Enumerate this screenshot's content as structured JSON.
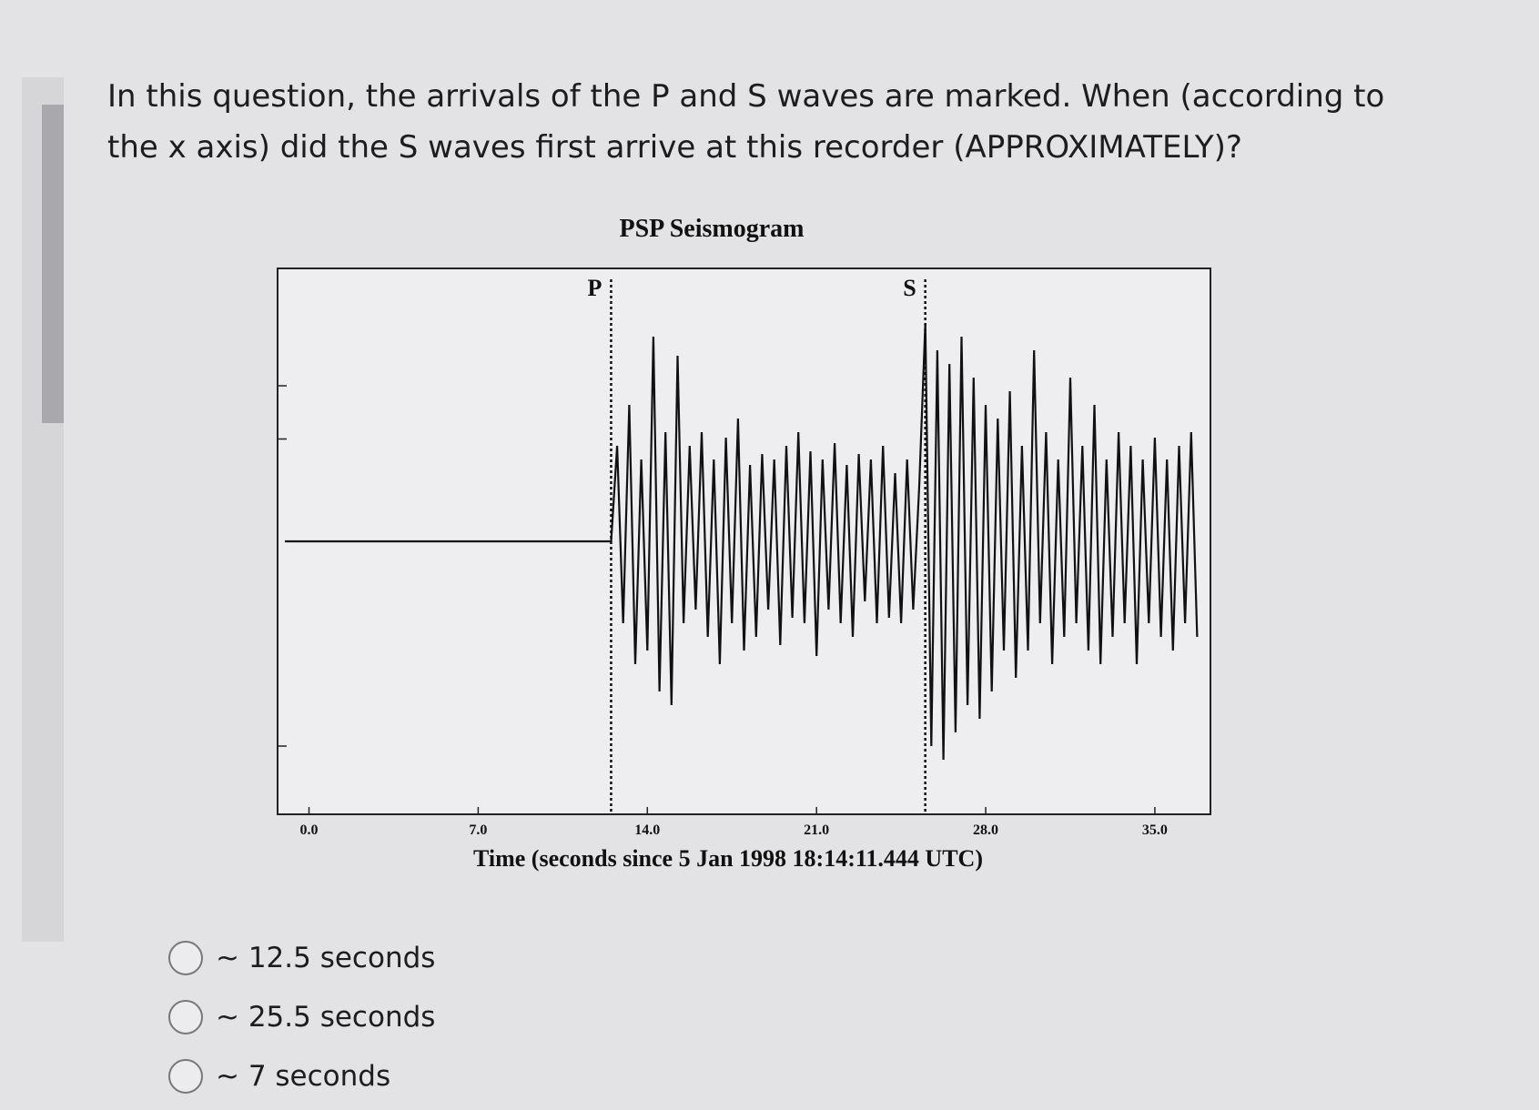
{
  "question": "In this question, the arrivals of the P and S waves are marked.  When (according to the x axis) did the S waves first arrive at this recorder (APPROXIMATELY)?",
  "chart_data": {
    "type": "line",
    "title": "PSP Seismogram",
    "x_label": "Time (seconds since 5 Jan 1998 18:14:11.444 UTC)",
    "xlim": [
      -1.3,
      37.3
    ],
    "ylim": [
      -1,
      1
    ],
    "xticks": [
      {
        "value": 0,
        "label": "0.0"
      },
      {
        "value": 7,
        "label": "7.0"
      },
      {
        "value": 14,
        "label": "14.0"
      },
      {
        "value": 21,
        "label": "21.0"
      },
      {
        "value": 28,
        "label": "28.0"
      },
      {
        "value": 35,
        "label": "35.0"
      }
    ],
    "yticks": [
      -0.75,
      0.375,
      0.57
    ],
    "color": "#111111",
    "markers": [
      {
        "label": "P",
        "x": 12.5
      },
      {
        "label": "S",
        "x": 25.5
      }
    ],
    "x": [
      -1,
      12.5,
      12.75,
      13,
      13.25,
      13.5,
      13.75,
      14,
      14.25,
      14.5,
      14.75,
      15,
      15.25,
      15.5,
      15.75,
      16,
      16.25,
      16.5,
      16.75,
      17,
      17.25,
      17.5,
      17.75,
      18,
      18.25,
      18.5,
      18.75,
      19,
      19.25,
      19.5,
      19.75,
      20,
      20.25,
      20.5,
      20.75,
      21,
      21.25,
      21.5,
      21.75,
      22,
      22.25,
      22.5,
      22.75,
      23,
      23.25,
      23.5,
      23.75,
      24,
      24.25,
      24.5,
      24.75,
      25,
      25.25,
      25.5,
      25.75,
      26,
      26.25,
      26.5,
      26.75,
      27,
      27.25,
      27.5,
      27.75,
      28,
      28.25,
      28.5,
      28.75,
      29,
      29.25,
      29.5,
      29.75,
      30,
      30.25,
      30.5,
      30.75,
      31,
      31.25,
      31.5,
      31.75,
      32,
      32.25,
      32.5,
      32.75,
      33,
      33.25,
      33.5,
      33.75,
      34,
      34.25,
      34.5,
      34.75,
      35,
      35.25,
      35.5,
      35.75,
      36,
      36.25,
      36.5,
      36.75
    ],
    "values": [
      0,
      0,
      0.35,
      -0.3,
      0.5,
      -0.45,
      0.3,
      -0.4,
      0.75,
      -0.55,
      0.4,
      -0.6,
      0.68,
      -0.3,
      0.35,
      -0.25,
      0.4,
      -0.35,
      0.3,
      -0.45,
      0.38,
      -0.3,
      0.45,
      -0.4,
      0.28,
      -0.35,
      0.32,
      -0.25,
      0.3,
      -0.38,
      0.35,
      -0.28,
      0.4,
      -0.3,
      0.33,
      -0.42,
      0.3,
      -0.25,
      0.36,
      -0.3,
      0.28,
      -0.35,
      0.32,
      -0.22,
      0.3,
      -0.3,
      0.35,
      -0.28,
      0.25,
      -0.3,
      0.3,
      -0.25,
      0.2,
      0.8,
      -0.75,
      0.7,
      -0.8,
      0.65,
      -0.7,
      0.75,
      -0.6,
      0.6,
      -0.65,
      0.5,
      -0.55,
      0.45,
      -0.4,
      0.55,
      -0.5,
      0.35,
      -0.4,
      0.7,
      -0.3,
      0.4,
      -0.45,
      0.3,
      -0.35,
      0.6,
      -0.3,
      0.35,
      -0.4,
      0.5,
      -0.45,
      0.3,
      -0.35,
      0.4,
      -0.3,
      0.35,
      -0.45,
      0.3,
      -0.3,
      0.38,
      -0.35,
      0.3,
      -0.4,
      0.35,
      -0.3,
      0.4,
      -0.35
    ]
  },
  "options": [
    "~ 12.5 seconds",
    "~ 25.5 seconds",
    "~ 7 seconds"
  ]
}
